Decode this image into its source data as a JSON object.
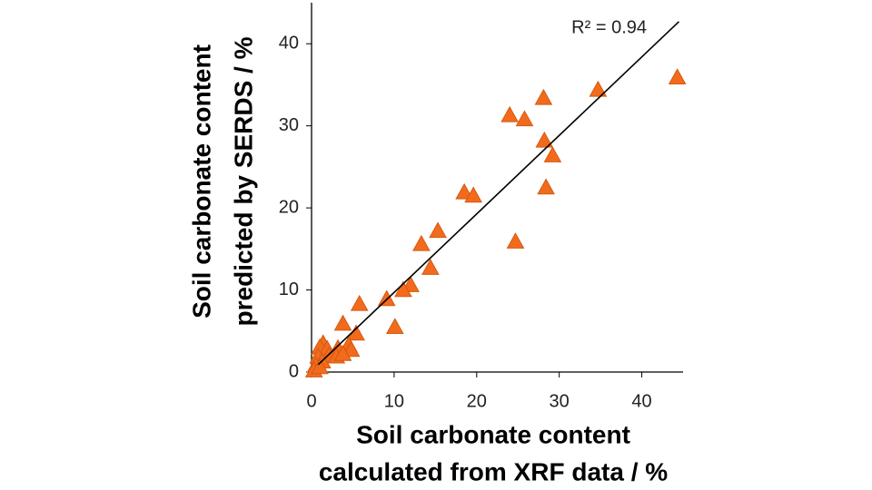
{
  "chart_data": {
    "type": "scatter",
    "xlabel": [
      "Soil carbonate content",
      "calculated from XRF data / %"
    ],
    "ylabel": [
      "Soil carbonate content",
      "predicted by SERDS / %"
    ],
    "annotation": "R² = 0.94",
    "xlim": [
      0,
      45
    ],
    "ylim": [
      0,
      45
    ],
    "xticks": [
      0,
      10,
      20,
      30,
      40
    ],
    "yticks": [
      0,
      10,
      20,
      30,
      40
    ],
    "series": [
      {
        "color": "#f26b1d",
        "x": [
          44.3,
          34.7,
          28.1,
          24.0,
          25.8,
          28.2,
          29.2,
          28.4,
          18.5,
          19.6,
          24.7,
          15.3,
          13.3,
          14.4,
          12.0,
          11.1,
          9.1,
          5.8,
          10.1,
          3.8,
          5.4,
          4.5,
          3.2,
          4.8,
          1.4,
          1.0,
          1.9,
          2.1,
          3.0,
          0.8,
          1.3,
          0.5,
          0.3,
          1.0,
          3.8
        ],
        "values": [
          35.9,
          34.4,
          33.4,
          31.3,
          30.8,
          28.2,
          26.4,
          22.5,
          21.9,
          21.5,
          15.9,
          17.2,
          15.6,
          12.7,
          10.6,
          10.0,
          8.9,
          8.3,
          5.5,
          5.9,
          4.7,
          3.3,
          2.9,
          2.7,
          3.5,
          3.0,
          2.8,
          2.0,
          1.9,
          1.9,
          1.3,
          0.8,
          0.2,
          0.6,
          2.2
        ]
      }
    ],
    "fit": {
      "color": "#000000",
      "x": [
        0.8,
        44.5
      ],
      "y": [
        0.9,
        42.7
      ]
    }
  }
}
